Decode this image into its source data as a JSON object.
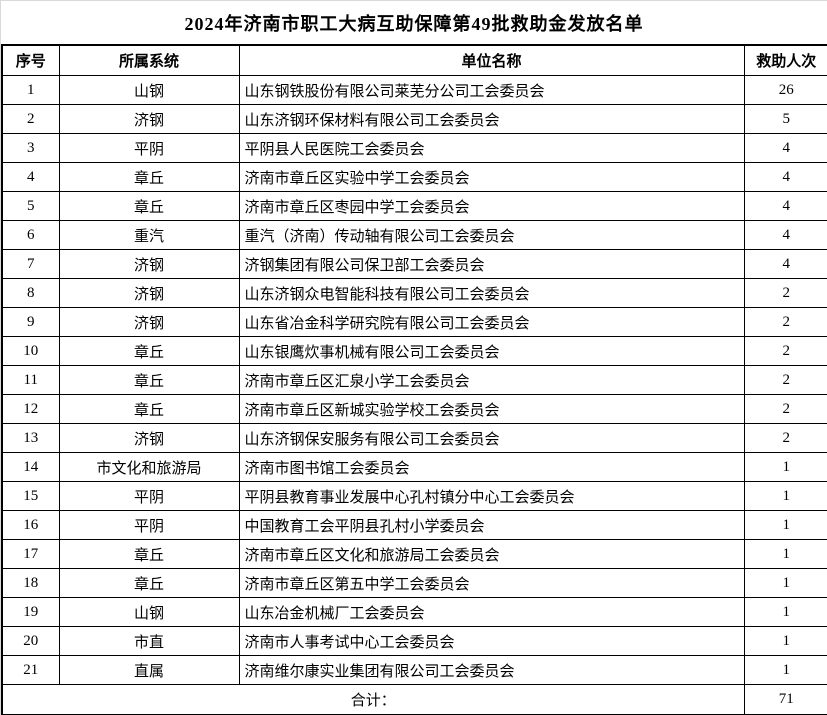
{
  "title": "2024年济南市职工大病互助保障第49批救助金发放名单",
  "table": {
    "headers": [
      "序号",
      "所属系统",
      "单位名称",
      "救助人次"
    ],
    "rows": [
      [
        "1",
        "山钢",
        "山东钢铁股份有限公司莱芜分公司工会委员会",
        "26"
      ],
      [
        "2",
        "济钢",
        "山东济钢环保材料有限公司工会委员会",
        "5"
      ],
      [
        "3",
        "平阴",
        "平阴县人民医院工会委员会",
        "4"
      ],
      [
        "4",
        "章丘",
        "济南市章丘区实验中学工会委员会",
        "4"
      ],
      [
        "5",
        "章丘",
        "济南市章丘区枣园中学工会委员会",
        "4"
      ],
      [
        "6",
        "重汽",
        "重汽（济南）传动轴有限公司工会委员会",
        "4"
      ],
      [
        "7",
        "济钢",
        "济钢集团有限公司保卫部工会委员会",
        "4"
      ],
      [
        "8",
        "济钢",
        "山东济钢众电智能科技有限公司工会委员会",
        "2"
      ],
      [
        "9",
        "济钢",
        "山东省冶金科学研究院有限公司工会委员会",
        "2"
      ],
      [
        "10",
        "章丘",
        "山东银鹰炊事机械有限公司工会委员会",
        "2"
      ],
      [
        "11",
        "章丘",
        "济南市章丘区汇泉小学工会委员会",
        "2"
      ],
      [
        "12",
        "章丘",
        "济南市章丘区新城实验学校工会委员会",
        "2"
      ],
      [
        "13",
        "济钢",
        "山东济钢保安服务有限公司工会委员会",
        "2"
      ],
      [
        "14",
        "市文化和旅游局",
        "济南市图书馆工会委员会",
        "1"
      ],
      [
        "15",
        "平阴",
        "平阴县教育事业发展中心孔村镇分中心工会委员会",
        "1"
      ],
      [
        "16",
        "平阴",
        "中国教育工会平阴县孔村小学委员会",
        "1"
      ],
      [
        "17",
        "章丘",
        "济南市章丘区文化和旅游局工会委员会",
        "1"
      ],
      [
        "18",
        "章丘",
        "济南市章丘区第五中学工会委员会",
        "1"
      ],
      [
        "19",
        "山钢",
        "山东冶金机械厂工会委员会",
        "1"
      ],
      [
        "20",
        "市直",
        "济南市人事考试中心工会委员会",
        "1"
      ],
      [
        "21",
        "直属",
        "济南维尔康实业集团有限公司工会委员会",
        "1"
      ]
    ],
    "footer": {
      "label": "合计：",
      "total": "71"
    }
  },
  "colors": {
    "text": "#000000",
    "background": "#ffffff",
    "table_border": "#000000",
    "edge_gridline": "#d9d9d9"
  }
}
